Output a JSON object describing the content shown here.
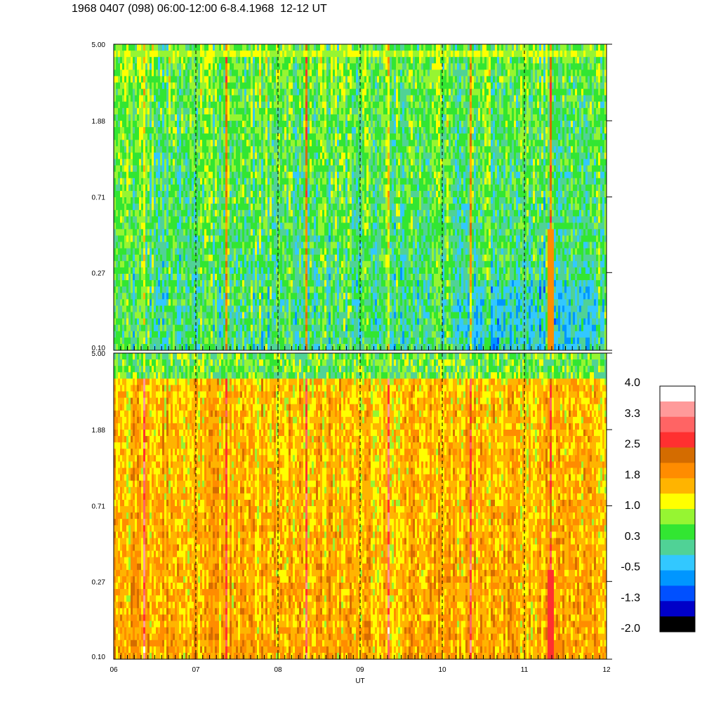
{
  "title": "1968 0407 (098) 06:00-12:00 6-8.4.1968  12-12 UT",
  "chart_data": [
    {
      "type": "heatmap",
      "panel": "upper",
      "y_ticks": [
        "5.00",
        "1.88",
        "0.71",
        "0.27",
        "0.10"
      ],
      "y_scale": "log",
      "ylim": [
        0.1,
        5.0
      ],
      "x_ticks": [
        "06",
        "07",
        "08",
        "09",
        "10",
        "11",
        "12"
      ],
      "xlim": [
        6,
        12
      ],
      "dashed_hour_lines": [
        7,
        8,
        9,
        10,
        11
      ],
      "dominant_level": 0.3,
      "bright_band_near_top": 1.0,
      "vertical_streak_hours": [
        6.38,
        7.38,
        8.35,
        9.35,
        10.35,
        11.33
      ],
      "strong_streak_hour": 11.33
    },
    {
      "type": "heatmap",
      "panel": "lower",
      "y_ticks": [
        "5.00",
        "1.88",
        "0.71",
        "0.27",
        "0.10"
      ],
      "y_scale": "log",
      "ylim": [
        0.1,
        5.0
      ],
      "x_ticks": [
        "06",
        "07",
        "08",
        "09",
        "10",
        "11",
        "12"
      ],
      "xlim": [
        6,
        12
      ],
      "xlabel": "UT",
      "dashed_hour_lines": [
        7,
        8,
        9,
        10,
        11
      ],
      "dominant_level": 1.8,
      "top_level": 0.3,
      "vertical_streak_hours": [
        6.38,
        7.38,
        8.35,
        9.35,
        10.35,
        11.33
      ],
      "strong_streak_hour": 11.33
    }
  ],
  "colorbar": {
    "labels": [
      "4.0",
      "3.3",
      "2.5",
      "1.8",
      "1.0",
      "0.3",
      "-0.5",
      "-1.3",
      "-2.0"
    ],
    "colors_top_to_bottom": [
      "#ffffff",
      "#ff9a9a",
      "#ff6464",
      "#ff3030",
      "#d46c00",
      "#ff8c00",
      "#ffb400",
      "#ffff00",
      "#96f532",
      "#32e632",
      "#50d296",
      "#32c8ff",
      "#0096ff",
      "#0050ff",
      "#0000c8",
      "#000000"
    ]
  }
}
